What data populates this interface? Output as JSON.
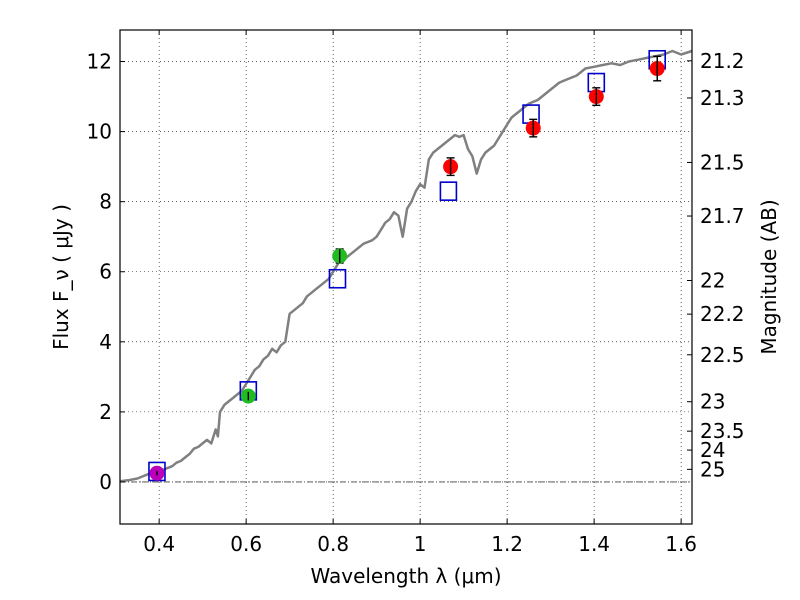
{
  "chart_data": {
    "type": "scatter",
    "title": "",
    "xlabel": "Wavelength  λ (μm)",
    "ylabel": "Flux  F_ν  ( μJy )",
    "y2label": "Magnitude (AB)",
    "xlim": [
      0.31,
      1.625
    ],
    "ylim": [
      -1.2,
      12.9
    ],
    "xticks": [
      0.4,
      0.6,
      0.8,
      1.0,
      1.2,
      1.4,
      1.6
    ],
    "xtick_labels": [
      "0.4",
      "0.6",
      "0.8",
      "1",
      "1.2",
      "1.4",
      "1.6"
    ],
    "yticks": [
      0,
      2,
      4,
      6,
      8,
      10,
      12
    ],
    "ytick_labels": [
      "0",
      "2",
      "4",
      "6",
      "8",
      "10",
      "12"
    ],
    "y2ticks": [
      {
        "label": "21.2",
        "flux": 12.02
      },
      {
        "label": "21.3",
        "flux": 10.96
      },
      {
        "label": "21.5",
        "flux": 9.12
      },
      {
        "label": "21.7",
        "flux": 7.59
      },
      {
        "label": "22",
        "flux": 5.75
      },
      {
        "label": "22.2",
        "flux": 4.79
      },
      {
        "label": "22.5",
        "flux": 3.63
      },
      {
        "label": "23",
        "flux": 2.29
      },
      {
        "label": "23.5",
        "flux": 1.45
      },
      {
        "label": "24",
        "flux": 0.91
      },
      {
        "label": "25",
        "flux": 0.36
      }
    ],
    "grid": true,
    "zero_line": true,
    "colors": {
      "model": "#808080",
      "model_points": "#0000cc",
      "violet": "#bb00bb",
      "green": "#22bb22",
      "red": "#ff0000",
      "errorbar": "#000000"
    },
    "series": [
      {
        "kind": "line",
        "color_key": "model",
        "x": [
          0.31,
          0.33,
          0.35,
          0.37,
          0.38,
          0.39,
          0.4,
          0.41,
          0.42,
          0.43,
          0.44,
          0.45,
          0.46,
          0.47,
          0.48,
          0.49,
          0.5,
          0.51,
          0.52,
          0.53,
          0.535,
          0.54,
          0.55,
          0.56,
          0.57,
          0.58,
          0.59,
          0.6,
          0.61,
          0.62,
          0.63,
          0.64,
          0.65,
          0.66,
          0.67,
          0.68,
          0.69,
          0.7,
          0.71,
          0.72,
          0.73,
          0.74,
          0.75,
          0.76,
          0.77,
          0.78,
          0.79,
          0.8,
          0.81,
          0.82,
          0.83,
          0.84,
          0.85,
          0.86,
          0.87,
          0.88,
          0.89,
          0.9,
          0.91,
          0.92,
          0.93,
          0.94,
          0.95,
          0.96,
          0.97,
          0.98,
          0.99,
          1.0,
          1.01,
          1.02,
          1.03,
          1.04,
          1.05,
          1.06,
          1.07,
          1.08,
          1.09,
          1.1,
          1.11,
          1.12,
          1.13,
          1.14,
          1.15,
          1.16,
          1.17,
          1.18,
          1.19,
          1.2,
          1.21,
          1.22,
          1.23,
          1.24,
          1.25,
          1.26,
          1.27,
          1.28,
          1.3,
          1.32,
          1.34,
          1.36,
          1.38,
          1.4,
          1.42,
          1.44,
          1.46,
          1.48,
          1.5,
          1.52,
          1.54,
          1.56,
          1.58,
          1.6,
          1.625
        ],
        "y": [
          0.02,
          0.05,
          0.1,
          0.2,
          0.25,
          0.3,
          0.32,
          0.35,
          0.4,
          0.45,
          0.55,
          0.6,
          0.7,
          0.8,
          0.95,
          1.0,
          1.1,
          1.2,
          1.1,
          1.5,
          1.3,
          2.0,
          2.2,
          2.3,
          2.4,
          2.5,
          2.6,
          2.8,
          3.0,
          3.2,
          3.3,
          3.5,
          3.6,
          3.8,
          3.7,
          3.9,
          4.0,
          4.8,
          4.9,
          5.0,
          5.1,
          5.3,
          5.4,
          5.5,
          5.6,
          5.7,
          5.8,
          6.0,
          6.2,
          6.5,
          6.4,
          6.5,
          6.6,
          6.7,
          6.8,
          6.85,
          6.9,
          7.0,
          7.2,
          7.4,
          7.5,
          7.7,
          7.6,
          7.0,
          7.8,
          8.0,
          8.3,
          8.5,
          8.4,
          9.2,
          9.4,
          9.5,
          9.6,
          9.7,
          9.8,
          9.9,
          9.85,
          9.9,
          9.5,
          9.3,
          8.8,
          9.2,
          9.4,
          9.5,
          9.6,
          9.8,
          10.0,
          10.2,
          10.4,
          10.5,
          10.6,
          10.7,
          10.8,
          10.85,
          10.9,
          11.0,
          11.2,
          11.4,
          11.5,
          11.6,
          11.8,
          11.85,
          11.9,
          11.95,
          11.9,
          12.0,
          12.05,
          12.1,
          12.15,
          12.2,
          12.3,
          12.2,
          12.3
        ]
      },
      {
        "kind": "open-square",
        "color_key": "model_points",
        "x": [
          0.395,
          0.605,
          0.81,
          1.065,
          1.255,
          1.405,
          1.545
        ],
        "y": [
          0.3,
          2.6,
          5.8,
          8.3,
          10.5,
          11.4,
          12.05
        ]
      },
      {
        "kind": "filled-circle",
        "color_key": "violet",
        "x": [
          0.395
        ],
        "y": [
          0.25
        ],
        "err": [
          0.06
        ]
      },
      {
        "kind": "filled-circle",
        "color_key": "green",
        "x": [
          0.605,
          0.815
        ],
        "y": [
          2.45,
          6.45
        ],
        "err": [
          0.12,
          0.2
        ]
      },
      {
        "kind": "filled-circle",
        "color_key": "red",
        "x": [
          1.07,
          1.26,
          1.405,
          1.545
        ],
        "y": [
          9.0,
          10.1,
          11.0,
          11.8
        ],
        "err": [
          0.25,
          0.25,
          0.25,
          0.35
        ]
      }
    ]
  }
}
